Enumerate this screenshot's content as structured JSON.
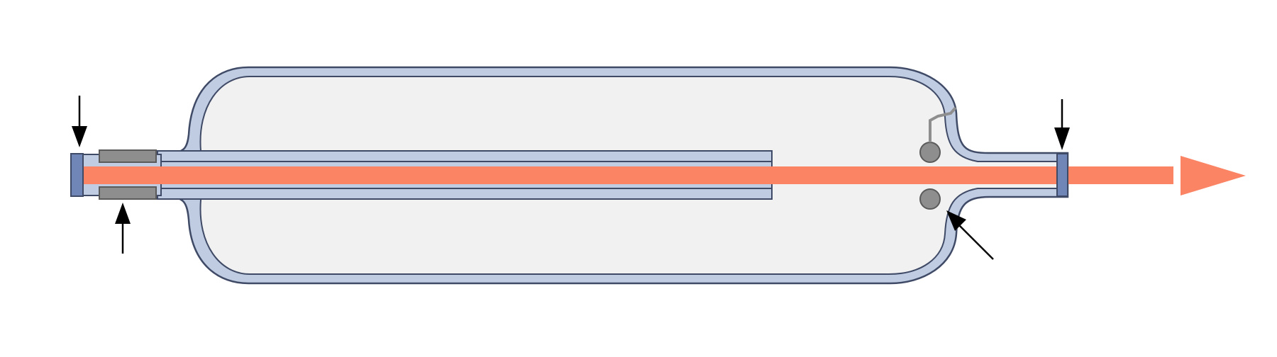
{
  "colors": {
    "background": "#ffffff",
    "tube_glass": "#c0cce2",
    "tube_glass_outline": "#3f4a66",
    "tube_interior": "#f1f1f2",
    "beam": "#fb8464",
    "end_window": "#6f86b6",
    "electrode": "#8e8e8e",
    "electrode_outline": "#5a5a5a",
    "getter": "#8e8e8e",
    "arrow": "#000000"
  },
  "components": [
    {
      "id": "envelope",
      "icon": "glass-envelope"
    },
    {
      "id": "laser-beam",
      "icon": "beam-arrow"
    },
    {
      "id": "left-window",
      "icon": "end-window"
    },
    {
      "id": "right-window",
      "icon": "end-window"
    },
    {
      "id": "electrodes",
      "icon": "cathode-ring"
    },
    {
      "id": "bore",
      "icon": "capillary-bore"
    },
    {
      "id": "getter",
      "icon": "getter-ball"
    },
    {
      "id": "pointer-arrows",
      "icon": "callout-arrow",
      "count": 4
    }
  ]
}
